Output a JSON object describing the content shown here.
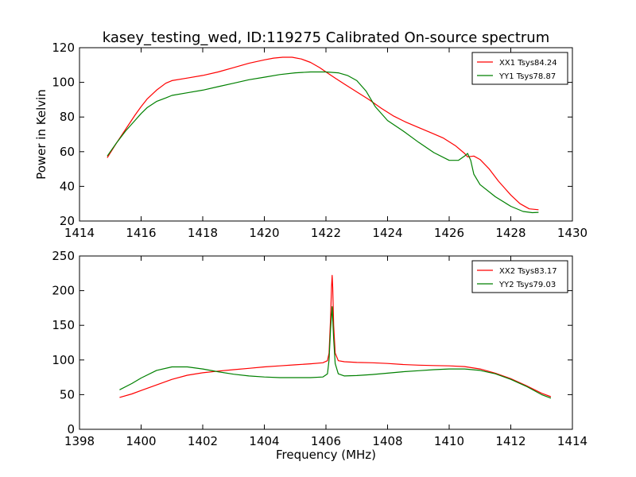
{
  "figure": {
    "title": "kasey_testing_wed, ID:119275 Calibrated On-source spectrum"
  },
  "chart_data": [
    {
      "type": "line",
      "title": "kasey_testing_wed, ID:119275 Calibrated On-source spectrum",
      "xlabel": "",
      "ylabel": "Power in Kelvin",
      "xlim": [
        1414,
        1430
      ],
      "ylim": [
        20,
        120
      ],
      "xticks": [
        1414,
        1416,
        1418,
        1420,
        1422,
        1424,
        1426,
        1428,
        1430
      ],
      "yticks": [
        20,
        40,
        60,
        80,
        100,
        120
      ],
      "grid": false,
      "legend_position": "top-right",
      "series": [
        {
          "name": "XX1 Tsys84.24",
          "color": "#ff0000",
          "x": [
            1414.9,
            1415.2,
            1415.5,
            1415.8,
            1416.0,
            1416.2,
            1416.5,
            1416.8,
            1417.0,
            1417.5,
            1418.0,
            1418.5,
            1419.0,
            1419.5,
            1420.0,
            1420.3,
            1420.6,
            1420.9,
            1421.2,
            1421.5,
            1421.8,
            1422.0,
            1422.3,
            1422.6,
            1423.0,
            1423.4,
            1423.8,
            1424.2,
            1424.6,
            1425.0,
            1425.4,
            1425.8,
            1426.2,
            1426.5,
            1426.6,
            1426.8,
            1427.0,
            1427.3,
            1427.6,
            1428.0,
            1428.3,
            1428.6,
            1428.9
          ],
          "y": [
            56.5,
            65,
            73,
            81,
            86,
            90.5,
            95.5,
            99.5,
            101,
            102.5,
            104,
            106,
            108.5,
            111,
            113,
            114,
            114.5,
            114.5,
            113.5,
            111.5,
            108.5,
            106,
            102.5,
            99,
            94.5,
            90,
            85,
            80.5,
            77,
            74,
            71,
            68,
            63.5,
            59,
            57,
            57.5,
            55.5,
            50,
            43,
            35,
            30,
            27,
            26.5
          ]
        },
        {
          "name": "YY1 Tsys78.87",
          "color": "#008000",
          "x": [
            1414.9,
            1415.2,
            1415.5,
            1415.8,
            1416.0,
            1416.2,
            1416.5,
            1416.8,
            1417.0,
            1417.5,
            1418.0,
            1418.5,
            1419.0,
            1419.5,
            1420.0,
            1420.5,
            1421.0,
            1421.5,
            1422.0,
            1422.4,
            1422.7,
            1423.0,
            1423.3,
            1423.6,
            1424.0,
            1424.5,
            1425.0,
            1425.5,
            1426.0,
            1426.3,
            1426.5,
            1426.6,
            1426.7,
            1426.8,
            1427.0,
            1427.5,
            1428.0,
            1428.4,
            1428.7,
            1428.9
          ],
          "y": [
            57.5,
            65,
            72,
            78,
            82,
            85.5,
            89,
            91,
            92.5,
            94,
            95.5,
            97.5,
            99.5,
            101.5,
            103,
            104.5,
            105.5,
            106,
            106,
            105.5,
            104,
            101,
            95,
            86,
            78,
            72,
            65.5,
            59.5,
            55,
            55,
            57.5,
            59,
            55,
            47,
            41,
            34,
            28.5,
            25.5,
            24.8,
            25
          ]
        }
      ]
    },
    {
      "type": "line",
      "title": "",
      "xlabel": "Frequency (MHz)",
      "ylabel": "",
      "xlim": [
        1398,
        1414
      ],
      "ylim": [
        0,
        250
      ],
      "xticks": [
        1398,
        1400,
        1402,
        1404,
        1406,
        1408,
        1410,
        1412,
        1414
      ],
      "yticks": [
        0,
        50,
        100,
        150,
        200,
        250
      ],
      "grid": false,
      "legend_position": "top-right",
      "series": [
        {
          "name": "XX2 Tsys83.17",
          "color": "#ff0000",
          "x": [
            1399.3,
            1399.7,
            1400.0,
            1400.5,
            1401.0,
            1401.5,
            1402.0,
            1402.5,
            1403.0,
            1403.5,
            1404.0,
            1404.5,
            1405.0,
            1405.5,
            1405.9,
            1406.05,
            1406.1,
            1406.15,
            1406.18,
            1406.2,
            1406.22,
            1406.25,
            1406.3,
            1406.4,
            1406.6,
            1407.0,
            1407.5,
            1408.0,
            1408.5,
            1409.0,
            1409.5,
            1410.0,
            1410.5,
            1411.0,
            1411.5,
            1412.0,
            1412.5,
            1413.0,
            1413.3
          ],
          "y": [
            46,
            51,
            56,
            64,
            72,
            78,
            81.5,
            84,
            86,
            88,
            90,
            91.5,
            93,
            94.5,
            96,
            99,
            110,
            160,
            205,
            222,
            205,
            150,
            110,
            99,
            97.5,
            96.5,
            96,
            95,
            93.5,
            92.5,
            92,
            91.5,
            90.5,
            87,
            81,
            73,
            63,
            52,
            47
          ]
        },
        {
          "name": "YY2 Tsys79.03",
          "color": "#008000",
          "x": [
            1399.3,
            1399.7,
            1400.0,
            1400.5,
            1401.0,
            1401.5,
            1402.0,
            1402.5,
            1403.0,
            1403.5,
            1404.0,
            1404.5,
            1405.0,
            1405.5,
            1405.9,
            1406.05,
            1406.1,
            1406.15,
            1406.2,
            1406.25,
            1406.3,
            1406.4,
            1406.6,
            1407.0,
            1407.5,
            1408.0,
            1408.5,
            1409.0,
            1409.5,
            1410.0,
            1410.5,
            1411.0,
            1411.5,
            1412.0,
            1412.5,
            1413.0,
            1413.3
          ],
          "y": [
            57,
            66,
            74,
            85,
            90,
            90,
            87,
            83,
            79.5,
            77,
            75.5,
            74.5,
            74.5,
            74.5,
            75.5,
            80,
            100,
            145,
            177,
            130,
            95,
            80,
            77,
            77.5,
            79,
            81,
            83,
            84.5,
            86,
            87,
            87,
            85,
            80,
            72,
            62,
            50,
            45
          ]
        }
      ]
    }
  ]
}
